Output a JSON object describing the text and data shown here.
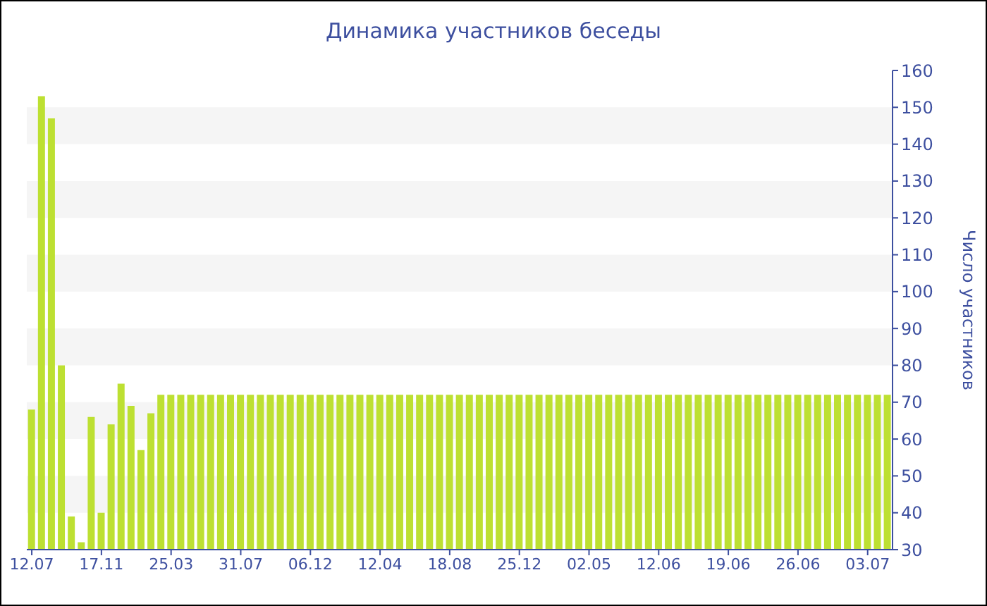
{
  "chart_data": {
    "type": "bar",
    "title": "Динамика участников беседы",
    "ylabel": "Число участников",
    "categories": [
      "12.07",
      null,
      null,
      null,
      null,
      null,
      null,
      "17.11",
      null,
      null,
      null,
      null,
      null,
      null,
      "25.03",
      null,
      null,
      null,
      null,
      null,
      null,
      "31.07",
      null,
      null,
      null,
      null,
      null,
      null,
      "06.12",
      null,
      null,
      null,
      null,
      null,
      null,
      "12.04",
      null,
      null,
      null,
      null,
      null,
      null,
      "18.08",
      null,
      null,
      null,
      null,
      null,
      null,
      "25.12",
      null,
      null,
      null,
      null,
      null,
      null,
      "02.05",
      null,
      null,
      null,
      null,
      null,
      null,
      "12.06",
      null,
      null,
      null,
      null,
      null,
      null,
      "19.06",
      null,
      null,
      null,
      null,
      null,
      null,
      "26.06",
      null,
      null,
      null,
      null,
      null,
      null,
      "03.07",
      null,
      null
    ],
    "values": [
      68,
      153,
      147,
      80,
      39,
      32,
      66,
      40,
      64,
      75,
      69,
      57,
      67,
      72,
      72,
      72,
      72,
      72,
      72,
      72,
      72,
      72,
      72,
      72,
      72,
      72,
      72,
      72,
      72,
      72,
      72,
      72,
      72,
      72,
      72,
      72,
      72,
      72,
      72,
      72,
      72,
      72,
      72,
      72,
      72,
      72,
      72,
      72,
      72,
      72,
      72,
      72,
      72,
      72,
      72,
      72,
      72,
      72,
      72,
      72,
      72,
      72,
      72,
      72,
      72,
      72,
      72,
      72,
      72,
      72,
      72,
      72,
      72,
      72,
      72,
      72,
      72,
      72,
      72,
      72,
      72,
      72,
      72,
      72,
      72,
      72,
      72
    ],
    "color": "#bde032",
    "ylim": [
      30,
      160
    ],
    "yticks": [
      30,
      40,
      50,
      60,
      70,
      80,
      90,
      100,
      110,
      120,
      130,
      140,
      150,
      160
    ],
    "bands": [
      {
        "axis": "y",
        "from": 40,
        "to": 50,
        "color": "#f5f5f5"
      },
      {
        "axis": "y",
        "from": 60,
        "to": 70,
        "color": "#f5f5f5"
      },
      {
        "axis": "y",
        "from": 80,
        "to": 90,
        "color": "#f5f5f5"
      },
      {
        "axis": "y",
        "from": 100,
        "to": 110,
        "color": "#f5f5f5"
      },
      {
        "axis": "y",
        "from": 120,
        "to": 130,
        "color": "#f5f5f5"
      },
      {
        "axis": "y",
        "from": 140,
        "to": 150,
        "color": "#f5f5f5"
      }
    ]
  }
}
